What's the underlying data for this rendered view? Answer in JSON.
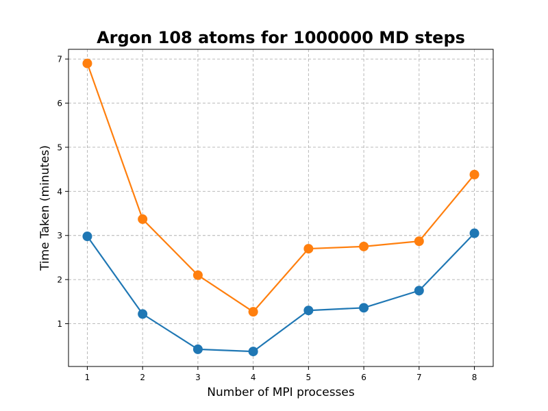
{
  "chart_data": {
    "type": "line",
    "title": "Argon 108 atoms for 1000000 MD steps",
    "xlabel": "Number of MPI processes",
    "ylabel": "Time Taken (minutes)",
    "x": [
      1,
      2,
      3,
      4,
      5,
      6,
      7,
      8
    ],
    "xlim": [
      0.66,
      8.34
    ],
    "ylim": [
      0.03,
      7.22
    ],
    "xticks": [
      "1",
      "2",
      "3",
      "4",
      "5",
      "6",
      "7",
      "8"
    ],
    "yticks": [
      "1",
      "2",
      "3",
      "4",
      "5",
      "6",
      "7"
    ],
    "grid": true,
    "series": [
      {
        "color": "#1f77b4",
        "values": [
          2.98,
          1.22,
          0.42,
          0.37,
          1.3,
          1.36,
          1.75,
          3.05
        ]
      },
      {
        "color": "#ff7f0e",
        "values": [
          6.9,
          3.37,
          2.1,
          1.27,
          2.7,
          2.75,
          2.87,
          4.38
        ]
      }
    ]
  }
}
